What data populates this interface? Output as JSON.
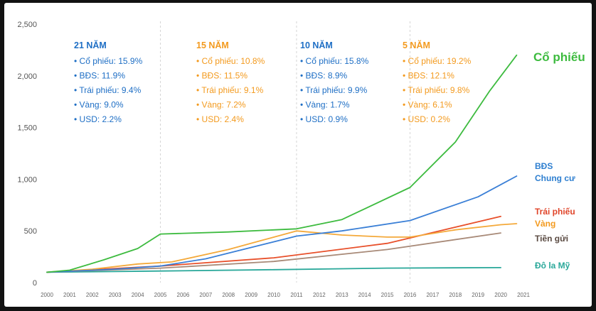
{
  "chart_data": {
    "type": "line",
    "x": [
      2000,
      2001,
      2002,
      2003,
      2004,
      2005,
      2006,
      2007,
      2008,
      2009,
      2010,
      2011,
      2012,
      2013,
      2014,
      2015,
      2016,
      2017,
      2018,
      2019,
      2020,
      2021
    ],
    "xlim": [
      2000,
      2021
    ],
    "ylim": [
      0,
      2500
    ],
    "y_ticks": [
      "0",
      "500",
      "1,000",
      "1,500",
      "2,000",
      "2,500"
    ],
    "y_tick_values": [
      0,
      500,
      1000,
      1500,
      2000,
      2500
    ],
    "grid": false,
    "periods": [
      {
        "title": "21 NĂM",
        "items": [
          "• Cổ phiếu: 15.9%",
          "• BĐS: 11.9%",
          "• Trái phiếu: 9.4%",
          "• Vàng: 9.0%",
          "• USD: 2.2%"
        ],
        "color": "#1f6fc5"
      },
      {
        "title": "15 NĂM",
        "items": [
          "• Cổ phiếu: 10.8%",
          "• BĐS: 11.5%",
          "• Trái phiếu: 9.1%",
          "• Vàng: 7.2%",
          "• USD: 2.4%"
        ],
        "color": "#f39a1e"
      },
      {
        "title": "10 NĂM",
        "items": [
          "• Cổ phiếu: 15.8%",
          "• BĐS: 8.9%",
          "• Trái phiếu: 9.9%",
          "• Vàng: 1.7%",
          "• USD: 0.9%"
        ],
        "color": "#1f6fc5"
      },
      {
        "title": "5 NĂM",
        "items": [
          "• Cổ phiếu: 19.2%",
          "• BĐS: 12.1%",
          "• Trái phiếu: 9.8%",
          "• Vàng: 6.1%",
          "• USD: 0.2%"
        ],
        "color": "#f39a1e"
      }
    ],
    "period_boundaries": [
      2005,
      2011,
      2016
    ],
    "series": [
      {
        "name": "Đô la Mỹ",
        "color": "#2aa89a",
        "x": [
          2000,
          2005,
          2010,
          2015,
          2020
        ],
        "values": [
          100,
          112,
          125,
          140,
          145
        ]
      },
      {
        "name": "Tiền gửi",
        "color": "#a88a78",
        "x": [
          2000,
          2005,
          2010,
          2015,
          2020
        ],
        "values": [
          100,
          140,
          205,
          320,
          480
        ]
      },
      {
        "name": "Trái phiếu",
        "color": "#e8502b",
        "x": [
          2000,
          2005,
          2010,
          2015,
          2020
        ],
        "values": [
          100,
          160,
          240,
          380,
          640
        ]
      },
      {
        "name": "Vàng",
        "color": "#f4a93a",
        "x": [
          2000,
          2002,
          2004,
          2005.5,
          2008,
          2009.5,
          2011,
          2013,
          2015,
          2016,
          2018,
          2020,
          2020.7
        ],
        "values": [
          100,
          130,
          180,
          200,
          320,
          410,
          500,
          460,
          440,
          440,
          510,
          560,
          570
        ]
      },
      {
        "name": "BĐS Chung cư",
        "color": "#3a7fd6",
        "x": [
          2000,
          2003,
          2005,
          2007,
          2009,
          2011,
          2013,
          2016,
          2019,
          2020.7
        ],
        "values": [
          100,
          130,
          160,
          230,
          340,
          450,
          500,
          600,
          830,
          1030
        ]
      },
      {
        "name": "Cổ phiếu",
        "color": "#3dbb3f",
        "x": [
          2000,
          2001,
          2002.5,
          2004,
          2005,
          2008,
          2011,
          2013,
          2016,
          2018,
          2019.5,
          2020.7
        ],
        "values": [
          100,
          120,
          220,
          330,
          470,
          490,
          520,
          610,
          920,
          1360,
          1850,
          2200
        ]
      }
    ]
  },
  "series_labels": [
    {
      "text": "Cổ phiếu",
      "color": "#3dbb3f"
    },
    {
      "text": "BĐS",
      "color": "#2e7fd0"
    },
    {
      "text": "Chung cư",
      "color": "#2e7fd0"
    },
    {
      "text": "Trái phiếu",
      "color": "#e0452a"
    },
    {
      "text": "Vàng",
      "color": "#f39a1e"
    },
    {
      "text": "Tiền gửi",
      "color": "#5a4a42"
    },
    {
      "text": "Đô la Mỹ",
      "color": "#2aa89a"
    }
  ]
}
